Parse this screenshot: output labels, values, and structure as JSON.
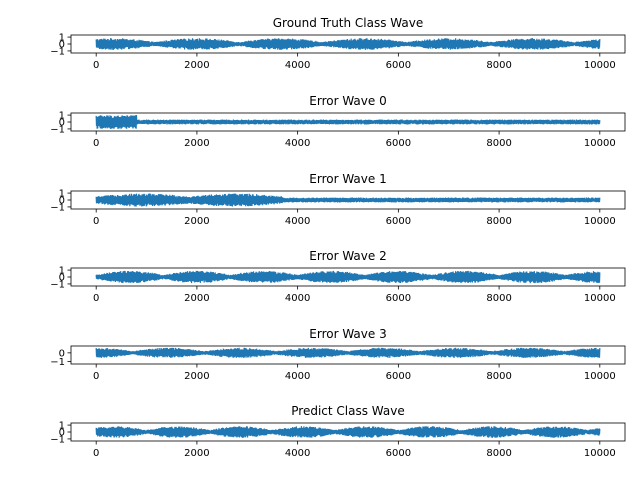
{
  "chart_data": [
    {
      "type": "line",
      "title": "Ground Truth Class Wave",
      "xlim": [
        -500,
        10500
      ],
      "ylim": [
        -1.3,
        1.3
      ],
      "xticks": [
        0,
        2000,
        4000,
        6000,
        8000,
        10000
      ],
      "xtick_labels": [
        "0",
        "2000",
        "4000",
        "6000",
        "8000",
        "10000"
      ],
      "yticks": [
        -1,
        0,
        1
      ],
      "ytick_labels": [
        "−1",
        "0",
        "1"
      ],
      "series": [
        {
          "color": "#1f77b4",
          "x_range": [
            0,
            10000
          ],
          "amplitude": 0.85,
          "envelope_cycles": 6,
          "envelope_phase": 0.3
        }
      ]
    },
    {
      "type": "line",
      "title": "Error Wave 0",
      "xlim": [
        -500,
        10500
      ],
      "ylim": [
        -1.3,
        1.3
      ],
      "xticks": [
        0,
        2000,
        4000,
        6000,
        8000,
        10000
      ],
      "xtick_labels": [
        "0",
        "2000",
        "4000",
        "6000",
        "8000",
        "10000"
      ],
      "yticks": [
        -1,
        0,
        1
      ],
      "ytick_labels": [
        "−1",
        "0",
        "1"
      ],
      "series": [
        {
          "color": "#1f77b4",
          "x_range": [
            0,
            10000
          ],
          "burst_end": 800,
          "burst_amplitude": 1.0,
          "amplitude": 0.35
        }
      ]
    },
    {
      "type": "line",
      "title": "Error Wave 1",
      "xlim": [
        -500,
        10500
      ],
      "ylim": [
        -1.3,
        1.3
      ],
      "xticks": [
        0,
        2000,
        4000,
        6000,
        8000,
        10000
      ],
      "xtick_labels": [
        "0",
        "2000",
        "4000",
        "6000",
        "8000",
        "10000"
      ],
      "yticks": [
        -1,
        0,
        1
      ],
      "ytick_labels": [
        "−1",
        "0",
        "1"
      ],
      "series": [
        {
          "color": "#1f77b4",
          "x_range": [
            0,
            10000
          ],
          "burst_end": 3700,
          "burst_amplitude": 0.95,
          "amplitude": 0.35,
          "envelope_cycles": 2
        }
      ]
    },
    {
      "type": "line",
      "title": "Error Wave 2",
      "xlim": [
        -500,
        10500
      ],
      "ylim": [
        -1.3,
        1.3
      ],
      "xticks": [
        0,
        2000,
        4000,
        6000,
        8000,
        10000
      ],
      "xtick_labels": [
        "0",
        "2000",
        "4000",
        "6000",
        "8000",
        "10000"
      ],
      "yticks": [
        -1,
        0,
        1
      ],
      "ytick_labels": [
        "−1",
        "0",
        "1"
      ],
      "series": [
        {
          "color": "#1f77b4",
          "x_range": [
            0,
            10000
          ],
          "amplitude": 0.9,
          "envelope_cycles": 7.5,
          "envelope_phase": 0.0
        }
      ]
    },
    {
      "type": "line",
      "title": "Error Wave 3",
      "xlim": [
        -500,
        10500
      ],
      "ylim": [
        -1.3,
        0.8
      ],
      "xticks": [
        0,
        2000,
        4000,
        6000,
        8000,
        10000
      ],
      "xtick_labels": [
        "0",
        "2000",
        "4000",
        "6000",
        "8000",
        "10000"
      ],
      "yticks": [
        -1,
        0
      ],
      "ytick_labels": [
        "−1",
        "0"
      ],
      "series": [
        {
          "color": "#1f77b4",
          "x_range": [
            0,
            10000
          ],
          "amplitude": 0.6,
          "envelope_cycles": 7,
          "envelope_phase": 0.5
        }
      ]
    },
    {
      "type": "line",
      "title": "Predict Class Wave",
      "xlim": [
        -500,
        10500
      ],
      "ylim": [
        -1.3,
        1.3
      ],
      "xticks": [
        0,
        2000,
        4000,
        6000,
        8000,
        10000
      ],
      "xtick_labels": [
        "0",
        "2000",
        "4000",
        "6000",
        "8000",
        "10000"
      ],
      "yticks": [
        -1,
        0,
        1
      ],
      "ytick_labels": [
        "−1",
        "0",
        "1"
      ],
      "series": [
        {
          "color": "#1f77b4",
          "x_range": [
            0,
            10000
          ],
          "amplitude": 0.85,
          "envelope_cycles": 8,
          "envelope_phase": 0.2
        }
      ]
    }
  ]
}
